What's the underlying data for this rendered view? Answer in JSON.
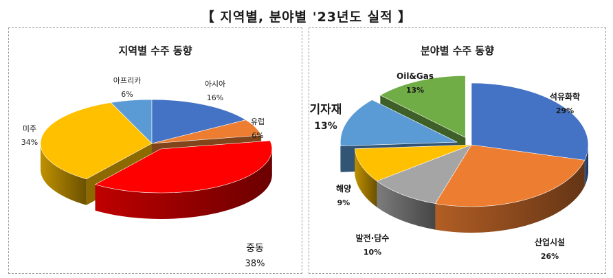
{
  "page_title": "【 지역별, 분야별 '23년도 실적 】",
  "colors": {
    "border": "#9a9a9a",
    "text": "#1a1a1a"
  },
  "chart_data": [
    {
      "type": "pie",
      "title": "지역별 수주 동향",
      "style": "3d-exploded",
      "slices": [
        {
          "label": "아시아",
          "value": 16,
          "value_label": "16%",
          "color": "#4472c4"
        },
        {
          "label": "유럽",
          "value": 6,
          "value_label": "6%",
          "color": "#ed7d31"
        },
        {
          "label": "중동",
          "value": 38,
          "value_label": "38%",
          "color": "#ff0000",
          "exploded": true
        },
        {
          "label": "미주",
          "value": 34,
          "value_label": "34%",
          "color": "#ffc000"
        },
        {
          "label": "아프리카",
          "value": 6,
          "value_label": "6%",
          "color": "#5b9bd5"
        }
      ]
    },
    {
      "type": "pie",
      "title": "분야별 수주 동향",
      "style": "3d-exploded",
      "slices": [
        {
          "label": "석유화학",
          "value": 29,
          "value_label": "29%",
          "color": "#4472c4"
        },
        {
          "label": "산업시설",
          "value": 26,
          "value_label": "26%",
          "color": "#ed7d31"
        },
        {
          "label": "발전·담수",
          "value": 10,
          "value_label": "10%",
          "color": "#a5a5a5"
        },
        {
          "label": "해양",
          "value": 9,
          "value_label": "9%",
          "color": "#ffc000"
        },
        {
          "label": "기자재",
          "value": 13,
          "value_label": "13%",
          "color": "#5b9bd5",
          "exploded": true
        },
        {
          "label": "Oil&Gas",
          "value": 13,
          "value_label": "13%",
          "color": "#70ad47",
          "exploded": true
        }
      ]
    }
  ]
}
